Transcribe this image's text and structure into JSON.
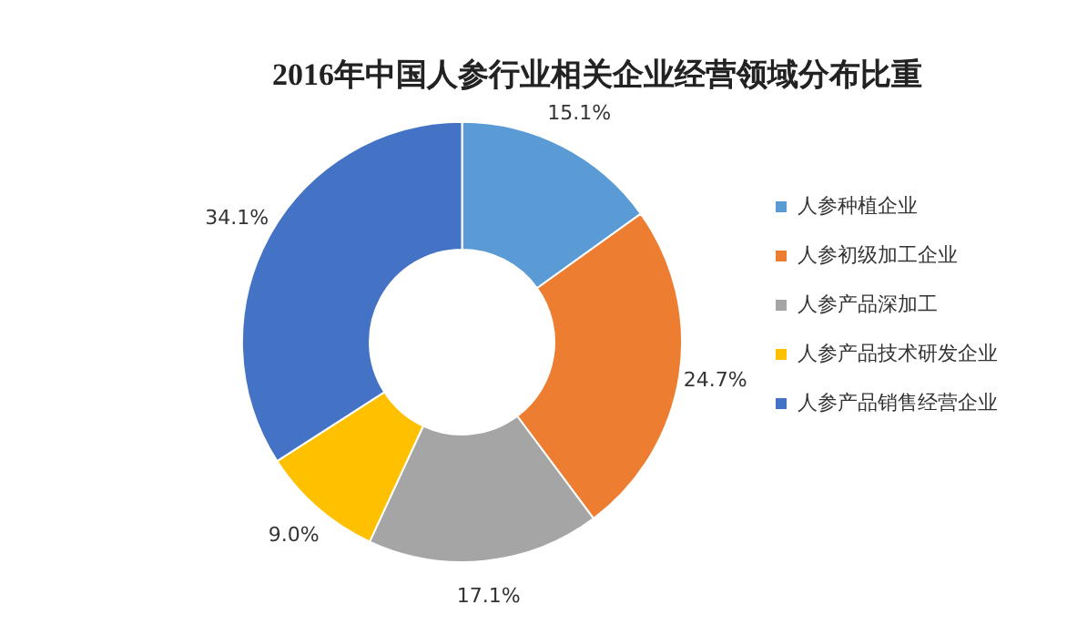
{
  "chart_data": {
    "type": "donut",
    "title": "2016年中国人参行业相关企业经营领域分布比重",
    "categories": [
      "人参种植企业",
      "人参初级加工企业",
      "人参产品深加工",
      "人参产品技术研发企业",
      "人参产品销售经营企业"
    ],
    "values": [
      15.1,
      24.7,
      17.1,
      9.0,
      34.1
    ],
    "colors": [
      "#5b9bd5",
      "#ed7d31",
      "#a5a5a5",
      "#ffc000",
      "#4472c4"
    ],
    "value_labels": [
      "15.1%",
      "24.7%",
      "17.1%",
      "9.0%",
      "34.1%"
    ],
    "legend": "right"
  }
}
